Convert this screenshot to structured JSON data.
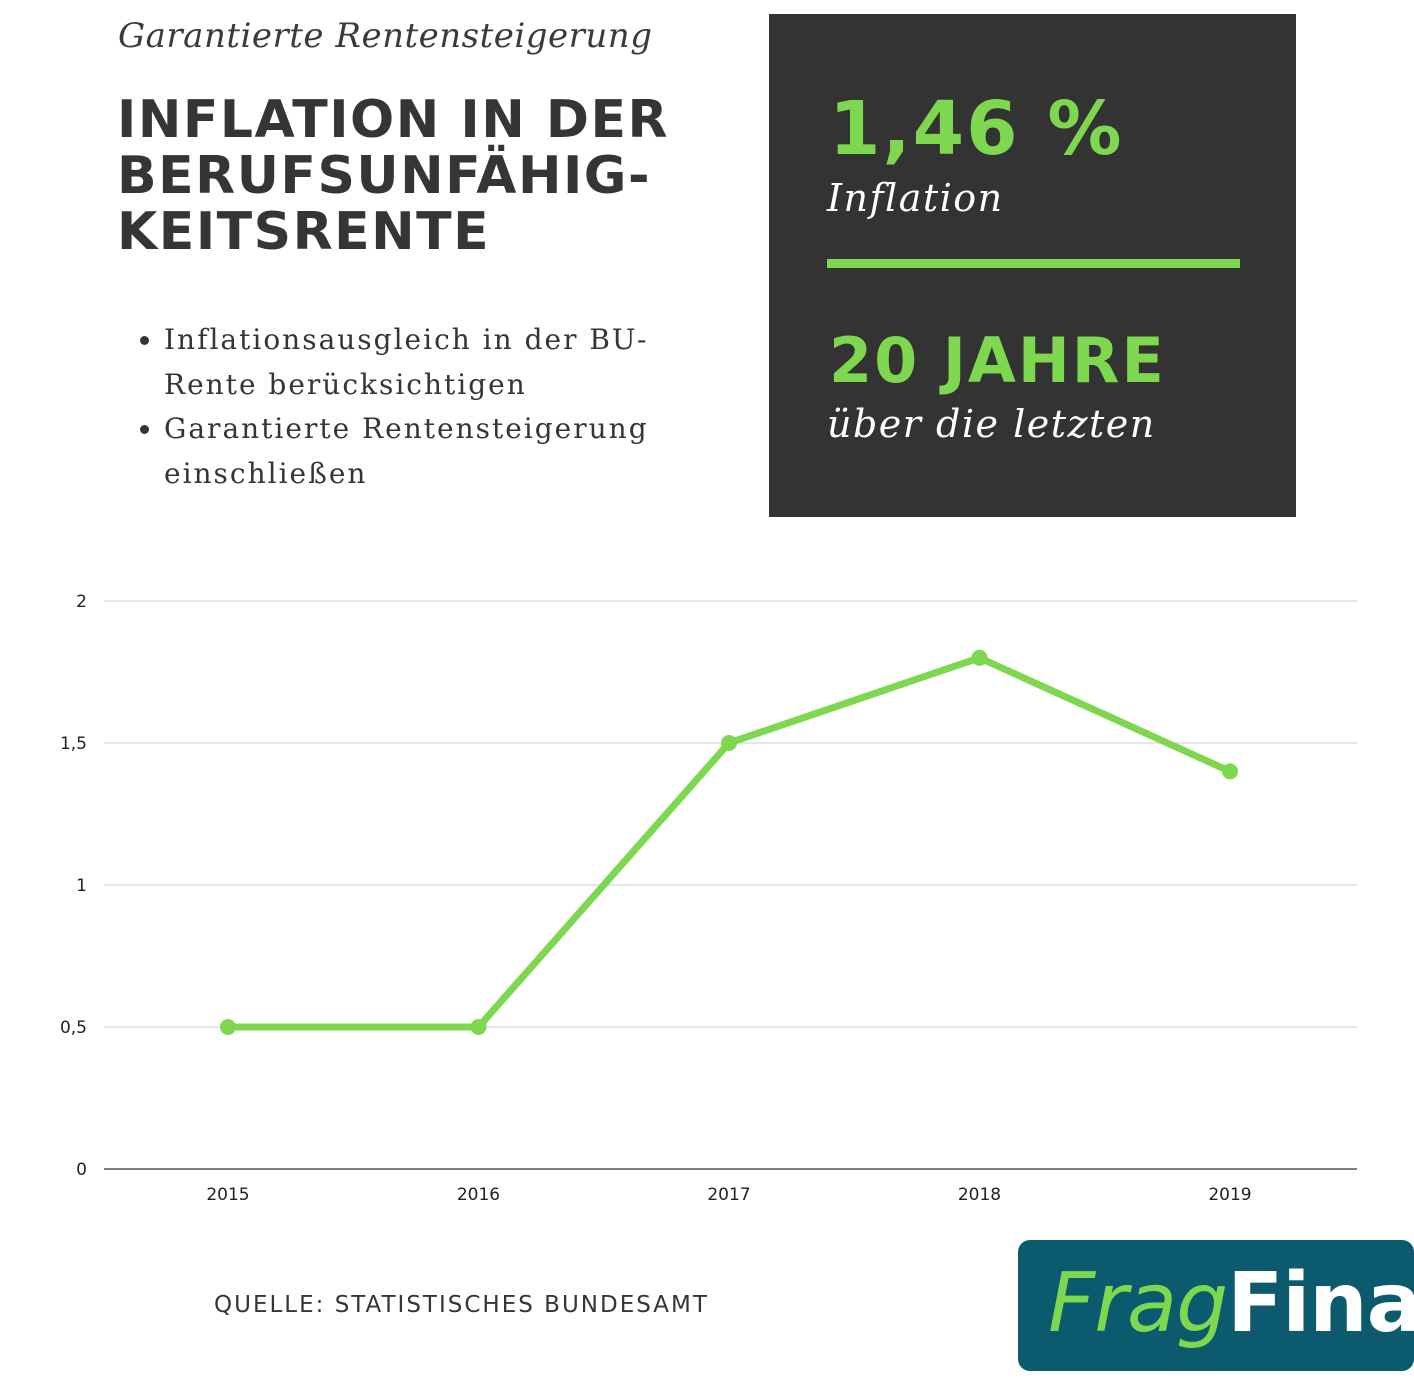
{
  "header": {
    "subtitle": "Garantierte Rentensteigerung",
    "title_lines": [
      "INFLATION IN DER",
      "BERUFSUNFÄHIG-",
      "KEITSRENTE"
    ]
  },
  "bullets": [
    "Inflationsausgleich in der BU-Rente berücksichtigen",
    "Garantierte Rentensteigerung einschließen"
  ],
  "stats": {
    "inflation_value": "1,46 %",
    "inflation_label": "Inflation",
    "period_value": "20 JAHRE",
    "period_label": "über die letzten"
  },
  "colors": {
    "accent_green": "#7dd74f",
    "dark_box": "#333333",
    "text_dark": "#353535",
    "logo_bg": "#0b5a6e",
    "grid": "#cccccc",
    "axis": "#555555"
  },
  "chart_data": {
    "type": "line",
    "categories": [
      "2015",
      "2016",
      "2017",
      "2018",
      "2019"
    ],
    "series": [
      {
        "values": [
          0.5,
          0.5,
          1.5,
          1.8,
          1.4
        ]
      }
    ],
    "ylim": [
      0,
      2
    ],
    "yticks": [
      0,
      0.5,
      1,
      1.5,
      2
    ],
    "ytick_labels": [
      "0",
      "0,5",
      "1",
      "1,5",
      "2"
    ],
    "grid": true,
    "title": "",
    "xlabel": "",
    "ylabel": ""
  },
  "footer": {
    "source": "QUELLE: STATISTISCHES BUNDESAMT",
    "logo_part1": "Frag",
    "logo_part2": "Fina"
  }
}
